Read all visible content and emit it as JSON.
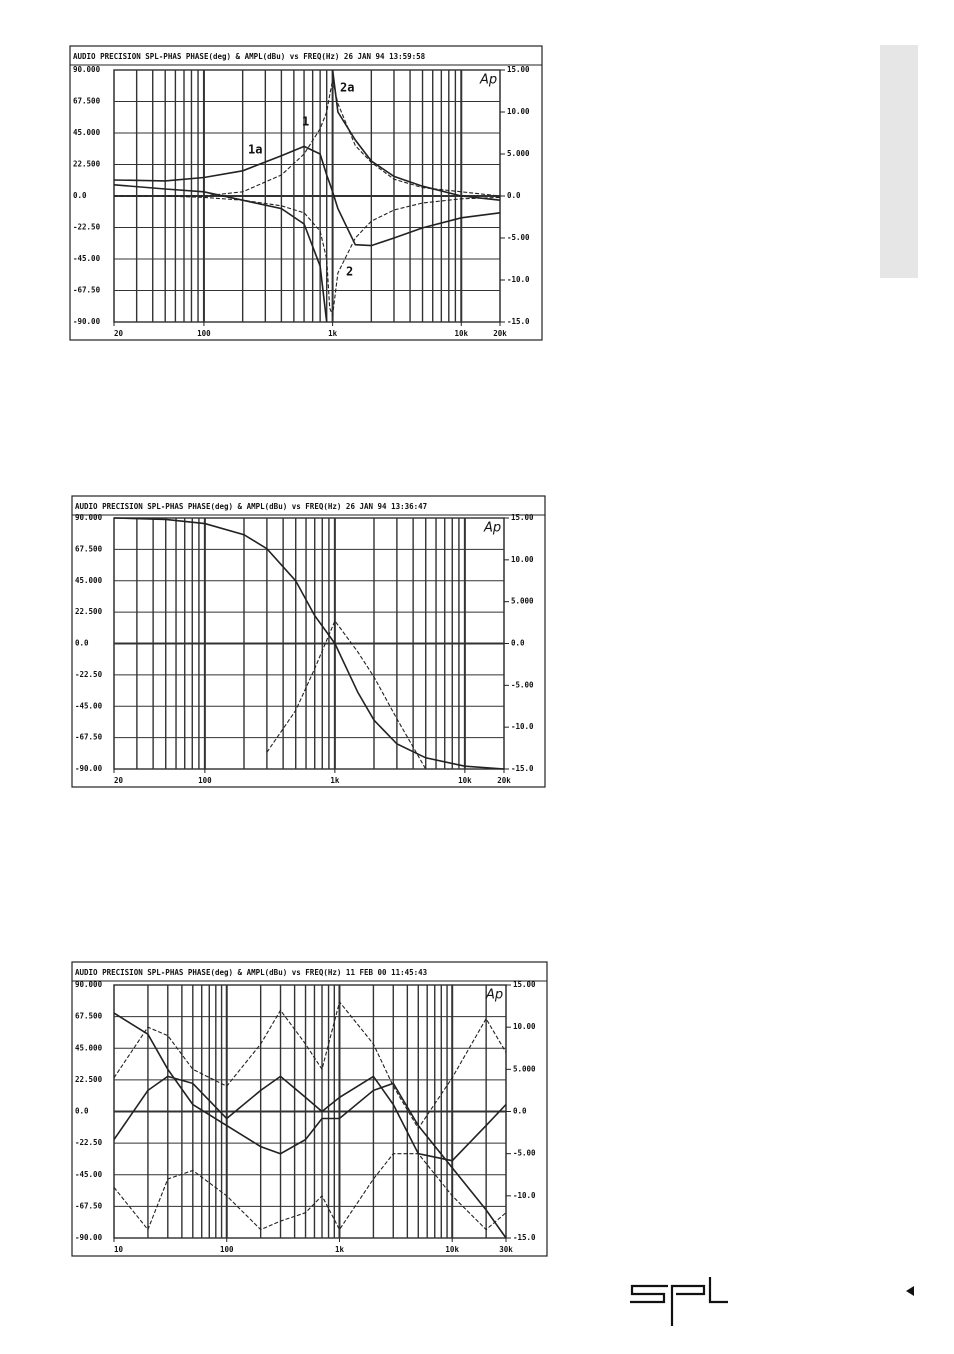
{
  "chart_data": [
    {
      "type": "line",
      "title": "AUDIO PRECISION SPL-PHAS PHASE(deg) & AMPL(dBu) vs FREQ(Hz)  26 JAN 94 13:59:58",
      "logo_text": "Ap",
      "log_x": true,
      "grid": true,
      "color": "#222",
      "xlim": [
        20,
        20000
      ],
      "xticks": [
        20,
        100,
        {
          "value": 1000,
          "label": "1k"
        },
        {
          "value": 10000,
          "label": "10k"
        },
        {
          "value": 20000,
          "label": "20k"
        }
      ],
      "ylim": [
        -90,
        90
      ],
      "yticks": [
        {
          "value": 90,
          "label": "90.000"
        },
        {
          "value": 67.5,
          "label": "67.500"
        },
        {
          "value": 45,
          "label": "45.000"
        },
        {
          "value": 22.5,
          "label": "22.500"
        },
        {
          "value": 0,
          "label": "0.0"
        },
        {
          "value": -22.5,
          "label": "-22.50"
        },
        {
          "value": -45,
          "label": "-45.00"
        },
        {
          "value": -67.5,
          "label": "-67.50"
        },
        {
          "value": -90,
          "label": "-90.00"
        }
      ],
      "y2lim": [
        -15,
        15
      ],
      "y2ticks": [
        {
          "value": 15,
          "label": "15.00"
        },
        {
          "value": 10,
          "label": "10.00"
        },
        {
          "value": 5,
          "label": "5.000"
        },
        {
          "value": 0,
          "label": "0.0"
        },
        {
          "value": -5,
          "label": "-5.00"
        },
        {
          "value": -10,
          "label": "-10.0"
        },
        {
          "value": -15,
          "label": "-15.0"
        }
      ],
      "x": [
        20,
        50,
        100,
        200,
        400,
        600,
        800,
        900,
        950,
        1000,
        1100,
        1500,
        2000,
        3000,
        5000,
        10000,
        20000
      ],
      "series": [
        {
          "axis": "y2",
          "dashed": false,
          "values": [
            1.9,
            1.8,
            2.2,
            3.0,
            4.8,
            5.9,
            5.0,
            2.5,
            1.5,
            0.5,
            -1.5,
            -5.8,
            -5.9,
            -5.0,
            -3.8,
            -2.6,
            -2.0
          ]
        },
        {
          "dashed": false,
          "values": [
            8,
            5,
            3,
            -3,
            -9,
            -20,
            -50,
            -90,
            null,
            90,
            60,
            40,
            25,
            14,
            7,
            0,
            -3
          ]
        },
        {
          "axis": "y2",
          "dashed": true,
          "values": [
            0,
            0,
            0,
            0.5,
            2.5,
            5,
            8,
            10,
            12,
            13.8,
            11,
            6,
            4,
            2,
            1,
            0.5,
            0
          ]
        },
        {
          "dashed": true,
          "values": [
            0,
            0,
            -1,
            -3,
            -7,
            -12,
            -25,
            -45,
            -80,
            -85,
            -55,
            -30,
            -18,
            -10,
            -5,
            -2,
            -1
          ]
        }
      ],
      "annotations": [
        "1a",
        "2a",
        "1",
        "2"
      ]
    },
    {
      "type": "line",
      "title": "AUDIO PRECISION SPL-PHAS PHASE(deg) & AMPL(dBu) vs FREQ(Hz)  26 JAN 94 13:36:47",
      "logo_text": "Ap",
      "log_x": true,
      "grid": true,
      "color": "#222",
      "xlim": [
        20,
        20000
      ],
      "xticks": [
        20,
        100,
        {
          "value": 1000,
          "label": "1k"
        },
        {
          "value": 10000,
          "label": "10k"
        },
        {
          "value": 20000,
          "label": "20k"
        }
      ],
      "ylim": [
        -90,
        90
      ],
      "yticks": [
        {
          "value": 90,
          "label": "90.000"
        },
        {
          "value": 67.5,
          "label": "67.500"
        },
        {
          "value": 45,
          "label": "45.000"
        },
        {
          "value": 22.5,
          "label": "22.500"
        },
        {
          "value": 0,
          "label": "0.0"
        },
        {
          "value": -22.5,
          "label": "-22.50"
        },
        {
          "value": -45,
          "label": "-45.00"
        },
        {
          "value": -67.5,
          "label": "-67.50"
        },
        {
          "value": -90,
          "label": "-90.00"
        }
      ],
      "y2lim": [
        -15,
        15
      ],
      "y2ticks": [
        {
          "value": 15,
          "label": "15.00"
        },
        {
          "value": 10,
          "label": "10.00"
        },
        {
          "value": 5,
          "label": "5.000"
        },
        {
          "value": 0,
          "label": "0.0"
        },
        {
          "value": -5,
          "label": "-5.00"
        },
        {
          "value": -10,
          "label": "-10.0"
        },
        {
          "value": -15,
          "label": "-15.0"
        }
      ],
      "x": [
        20,
        50,
        100,
        200,
        300,
        500,
        700,
        1000,
        1500,
        2000,
        3000,
        5000,
        10000,
        20000
      ],
      "series": [
        {
          "dashed": false,
          "values": [
            90,
            89,
            86,
            78,
            68,
            45,
            20,
            0,
            -35,
            -55,
            -72,
            -82,
            -88,
            -90
          ]
        },
        {
          "axis": "y2",
          "dashed": true,
          "values": [
            null,
            null,
            null,
            null,
            -13,
            -8,
            -3,
            2.7,
            -1,
            -4,
            -9,
            -15,
            null,
            null
          ]
        }
      ]
    },
    {
      "type": "line",
      "title": "AUDIO PRECISION SPL-PHAS PHASE(deg) & AMPL(dBu) vs FREQ(Hz)  11 FEB 00 11:45:43",
      "logo_text": "Ap",
      "log_x": true,
      "grid": true,
      "color": "#222",
      "xlim": [
        10,
        30000
      ],
      "xticks": [
        10,
        100,
        {
          "value": 1000,
          "label": "1k"
        },
        {
          "value": 10000,
          "label": "10k"
        },
        {
          "value": 30000,
          "label": "30k"
        }
      ],
      "ylim": [
        -90,
        90
      ],
      "yticks": [
        {
          "value": 90,
          "label": "90.000"
        },
        {
          "value": 67.5,
          "label": "67.500"
        },
        {
          "value": 45,
          "label": "45.000"
        },
        {
          "value": 22.5,
          "label": "22.500"
        },
        {
          "value": 0,
          "label": "0.0"
        },
        {
          "value": -22.5,
          "label": "-22.50"
        },
        {
          "value": -45,
          "label": "-45.00"
        },
        {
          "value": -67.5,
          "label": "-67.50"
        },
        {
          "value": -90,
          "label": "-90.00"
        }
      ],
      "y2lim": [
        -15,
        15
      ],
      "y2ticks": [
        {
          "value": 15,
          "label": "15.00"
        },
        {
          "value": 10,
          "label": "10.00"
        },
        {
          "value": 5,
          "label": "5.000"
        },
        {
          "value": 0,
          "label": "0.0"
        },
        {
          "value": -5,
          "label": "-5.00"
        },
        {
          "value": -10,
          "label": "-10.0"
        },
        {
          "value": -15,
          "label": "-15.0"
        }
      ],
      "x": [
        10,
        20,
        30,
        50,
        100,
        200,
        300,
        500,
        700,
        1000,
        2000,
        3000,
        5000,
        10000,
        20000,
        30000
      ],
      "series": [
        {
          "dashed": false,
          "values": [
            70,
            55,
            30,
            5,
            -10,
            -25,
            -30,
            -20,
            -5,
            -5,
            15,
            20,
            -10,
            -40,
            -70,
            -90
          ]
        },
        {
          "dashed": false,
          "values": [
            -20,
            15,
            25,
            20,
            -5,
            15,
            25,
            10,
            0,
            10,
            25,
            5,
            -30,
            -35,
            -10,
            5
          ]
        },
        {
          "axis": "y2",
          "dashed": true,
          "values": [
            4,
            10,
            9,
            5,
            3,
            8,
            12,
            8,
            5,
            13,
            8,
            3,
            -2,
            4,
            11,
            7
          ]
        },
        {
          "axis": "y2",
          "dashed": true,
          "values": [
            -9,
            -14,
            -8,
            -7,
            -10,
            -14,
            -13,
            -12,
            -10,
            -14,
            -8,
            -5,
            -5,
            -10,
            -14,
            -12
          ]
        }
      ]
    }
  ]
}
